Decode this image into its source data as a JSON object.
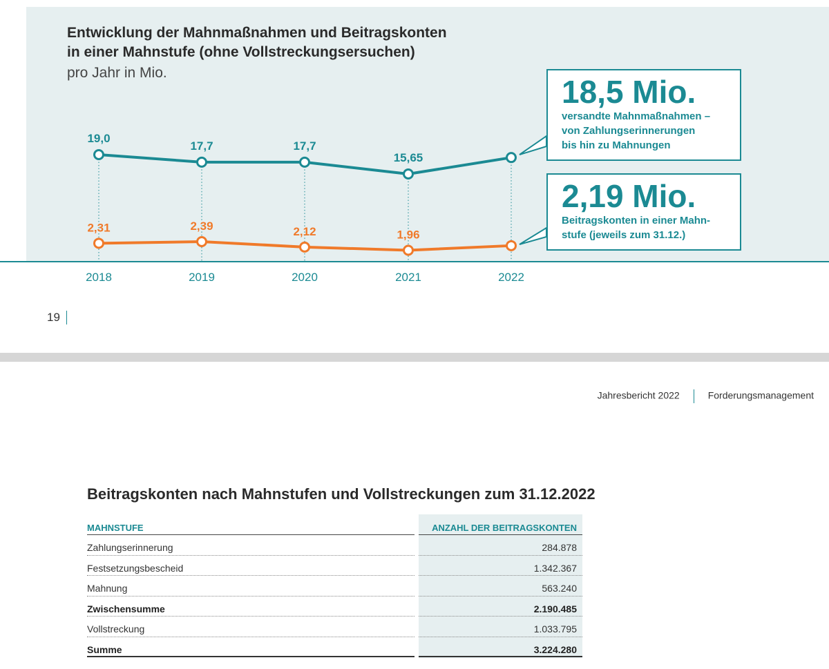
{
  "chart": {
    "title_line1": "Entwicklung der Mahnmaßnahmen und Beitragskonten",
    "title_line2": "in einer Mahnstufe (ohne Vollstreckungsersuchen)",
    "subtitle": "pro Jahr in Mio."
  },
  "chart_data": {
    "type": "line",
    "title": "Entwicklung der Mahnmaßnahmen und Beitragskonten in einer Mahnstufe (ohne Vollstreckungsersuchen)",
    "ylabel": "pro Jahr in Mio.",
    "categories": [
      "2018",
      "2019",
      "2020",
      "2021",
      "2022"
    ],
    "series": [
      {
        "name": "versandte Mahnmaßnahmen",
        "values": [
          19.0,
          17.7,
          17.7,
          15.65,
          18.5
        ],
        "labels": [
          "19,0",
          "17,7",
          "17,7",
          "15,65",
          ""
        ],
        "color": "#1b8a93"
      },
      {
        "name": "Beitragskonten in einer Mahnstufe",
        "values": [
          2.31,
          2.39,
          2.12,
          1.96,
          2.19
        ],
        "labels": [
          "2,31",
          "2,39",
          "2,12",
          "1,96",
          ""
        ],
        "color": "#f07a2a"
      }
    ]
  },
  "callouts": [
    {
      "big": "18,5 Mio.",
      "text": [
        "versandte Mahnmaßnahmen –",
        "von Zahlungserinnerungen",
        "bis hin zu Mahnungen"
      ]
    },
    {
      "big": "2,19 Mio.",
      "text": [
        "Beitragskonten in einer Mahn-",
        "stufe (jeweils zum 31.12.)"
      ]
    }
  ],
  "page_number": "19",
  "header": {
    "left": "Jahresbericht 2022",
    "right": "Forderungsmanagement"
  },
  "table": {
    "title": "Beitragskonten nach Mahnstufen und Vollstreckungen zum 31.12.2022",
    "col_left": "MAHNSTUFE",
    "col_right": "ANZAHL DER BEITRAGSKONTEN",
    "rows": [
      {
        "label": "Zahlungserinnerung",
        "value": "284.878"
      },
      {
        "label": "Festsetzungsbescheid",
        "value": "1.342.367"
      },
      {
        "label": "Mahnung",
        "value": "563.240"
      },
      {
        "label": "Zwischensumme",
        "value": "2.190.485"
      },
      {
        "label": "Vollstreckung",
        "value": "1.033.795"
      },
      {
        "label": "Summe",
        "value": "3.224.280"
      }
    ]
  },
  "colors": {
    "teal": "#1b8a93",
    "orange": "#f07a2a",
    "panel": "#e6eff0"
  }
}
